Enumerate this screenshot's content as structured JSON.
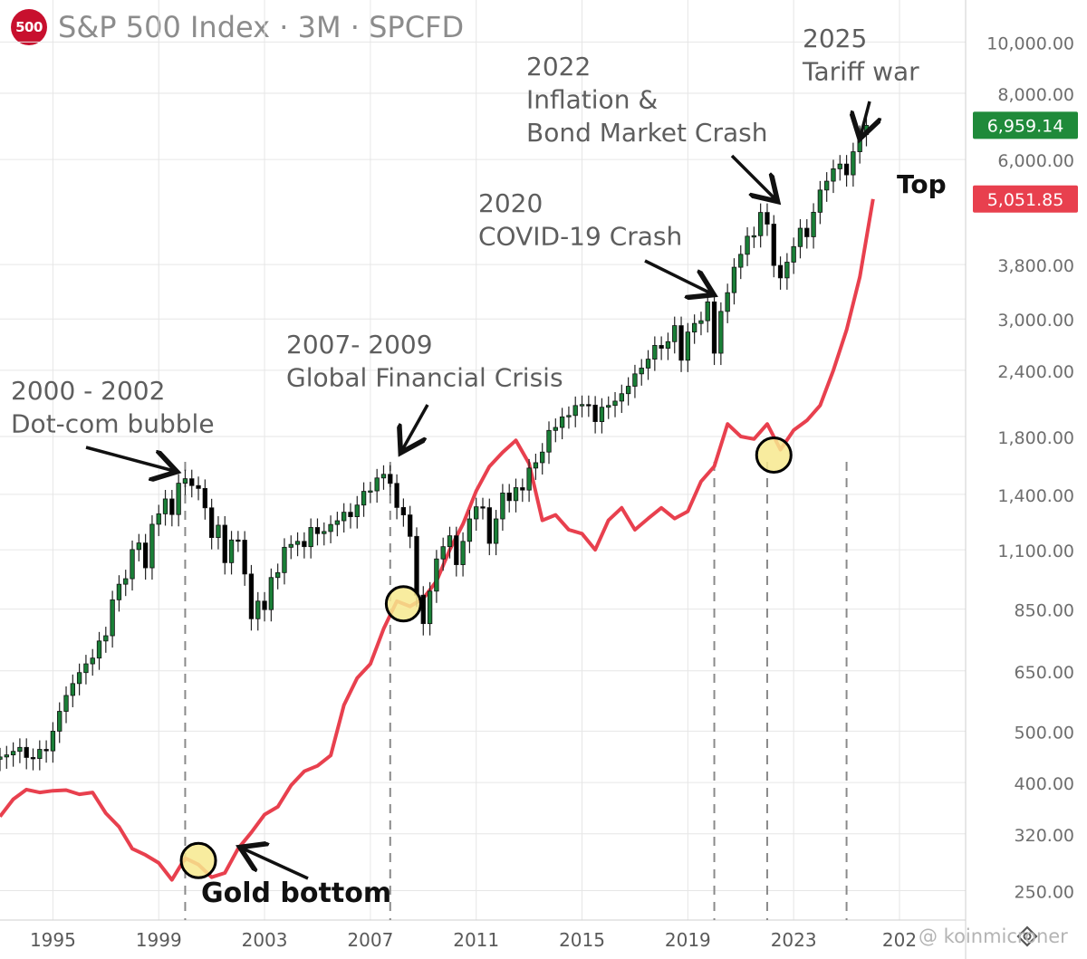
{
  "header": {
    "symbol_badge": "500",
    "title": "S&P 500 Index · 3M · SPCFD"
  },
  "watermark": "@ koinmicroner",
  "colors": {
    "up_candle": "#1a7f37",
    "down_candle": "#000000",
    "gold_line": "#e8404e",
    "price_tag_green": "#1f8a3a",
    "price_tag_red": "#e8404e",
    "highlight_circle": "#f7e98e",
    "grid": "#e6e6e6"
  },
  "chart_data": {
    "type": "line",
    "y_scale": "log",
    "ylim": [
      220,
      12000
    ],
    "xlim": [
      1993.0,
      2029.5
    ],
    "y_ticks": [
      "10,000.00",
      "8,000.00",
      "6,000.00",
      "3,800.00",
      "3,000.00",
      "2,400.00",
      "1,800.00",
      "1,400.00",
      "1,100.00",
      "850.00",
      "650.00",
      "500.00",
      "400.00",
      "320.00",
      "250.00"
    ],
    "x_ticks": [
      "1995",
      "1999",
      "2003",
      "2007",
      "2011",
      "2015",
      "2019",
      "2023",
      "202"
    ],
    "price_tags": [
      {
        "label": "6,959.14",
        "value": 6959.14,
        "color": "green"
      },
      {
        "label": "5,051.85",
        "value": 5051.85,
        "color": "red"
      }
    ],
    "series": [
      {
        "name": "S&P 500 Index",
        "kind": "quarterly-candles",
        "x": [
          1993.0,
          1993.25,
          1993.5,
          1993.75,
          1994.0,
          1994.25,
          1994.5,
          1994.75,
          1995.0,
          1995.25,
          1995.5,
          1995.75,
          1996.0,
          1996.25,
          1996.5,
          1996.75,
          1997.0,
          1997.25,
          1997.5,
          1997.75,
          1998.0,
          1998.25,
          1998.5,
          1998.75,
          1999.0,
          1999.25,
          1999.5,
          1999.75,
          2000.0,
          2000.25,
          2000.5,
          2000.75,
          2001.0,
          2001.25,
          2001.5,
          2001.75,
          2002.0,
          2002.25,
          2002.5,
          2002.75,
          2003.0,
          2003.25,
          2003.5,
          2003.75,
          2004.0,
          2004.25,
          2004.5,
          2004.75,
          2005.0,
          2005.25,
          2005.5,
          2005.75,
          2006.0,
          2006.25,
          2006.5,
          2006.75,
          2007.0,
          2007.25,
          2007.5,
          2007.75,
          2008.0,
          2008.25,
          2008.5,
          2008.75,
          2009.0,
          2009.25,
          2009.5,
          2009.75,
          2010.0,
          2010.25,
          2010.5,
          2010.75,
          2011.0,
          2011.25,
          2011.5,
          2011.75,
          2012.0,
          2012.25,
          2012.5,
          2012.75,
          2013.0,
          2013.25,
          2013.5,
          2013.75,
          2014.0,
          2014.25,
          2014.5,
          2014.75,
          2015.0,
          2015.25,
          2015.5,
          2015.75,
          2016.0,
          2016.25,
          2016.5,
          2016.75,
          2017.0,
          2017.25,
          2017.5,
          2017.75,
          2018.0,
          2018.25,
          2018.5,
          2018.75,
          2019.0,
          2019.25,
          2019.5,
          2019.75,
          2020.0,
          2020.25,
          2020.5,
          2020.75,
          2021.0,
          2021.25,
          2021.5,
          2021.75,
          2022.0,
          2022.25,
          2022.5,
          2022.75,
          2023.0,
          2023.25,
          2023.5,
          2023.75,
          2024.0,
          2024.25,
          2024.5,
          2024.75,
          2025.0,
          2025.25,
          2025.5,
          2025.75
        ],
        "values": [
          447,
          451,
          458,
          466,
          446,
          444,
          462,
          459,
          500,
          545,
          584,
          615,
          645,
          670,
          687,
          740,
          757,
          885,
          947,
          970,
          1101,
          1133,
          1017,
          1229,
          1286,
          1372,
          1282,
          1469,
          1498,
          1454,
          1436,
          1320,
          1160,
          1224,
          1040,
          1148,
          1147,
          990,
          815,
          880,
          848,
          975,
          996,
          1112,
          1126,
          1141,
          1115,
          1212,
          1180,
          1191,
          1228,
          1248,
          1295,
          1270,
          1336,
          1418,
          1421,
          1503,
          1527,
          1468,
          1322,
          1280,
          1166,
          903,
          798,
          919,
          1057,
          1115,
          1169,
          1031,
          1141,
          1258,
          1326,
          1321,
          1131,
          1258,
          1408,
          1362,
          1441,
          1426,
          1569,
          1606,
          1682,
          1848,
          1872,
          1960,
          1972,
          2059,
          2068,
          2063,
          1920,
          2044,
          2060,
          2099,
          2168,
          2239,
          2363,
          2423,
          2519,
          2674,
          2641,
          2718,
          2914,
          2507,
          2834,
          2942,
          2977,
          3231,
          2585,
          3100,
          3363,
          3756,
          3973,
          4298,
          4308,
          4766,
          4530,
          3785,
          3586,
          3840,
          4109,
          4450,
          4288,
          4770,
          5254,
          5460,
          5762,
          5882,
          5612,
          6205,
          6688,
          6959.14
        ]
      },
      {
        "name": "Gold",
        "kind": "line",
        "x": [
          1993.0,
          1993.5,
          1994.0,
          1994.5,
          1995.0,
          1995.5,
          1996.0,
          1996.5,
          1997.0,
          1997.5,
          1998.0,
          1998.5,
          1999.0,
          1999.5,
          2000.0,
          2000.5,
          2001.0,
          2001.5,
          2002.0,
          2002.5,
          2003.0,
          2003.5,
          2004.0,
          2004.5,
          2005.0,
          2005.5,
          2006.0,
          2006.5,
          2007.0,
          2007.5,
          2008.0,
          2008.5,
          2009.0,
          2009.5,
          2010.0,
          2010.5,
          2011.0,
          2011.5,
          2012.0,
          2012.5,
          2013.0,
          2013.5,
          2014.0,
          2014.5,
          2015.0,
          2015.5,
          2016.0,
          2016.5,
          2017.0,
          2017.5,
          2018.0,
          2018.5,
          2019.0,
          2019.5,
          2020.0,
          2020.5,
          2021.0,
          2021.5,
          2022.0,
          2022.5,
          2023.0,
          2023.5,
          2024.0,
          2024.5,
          2025.0,
          2025.5,
          2026.0
        ],
        "values": [
          345,
          372,
          388,
          383,
          386,
          387,
          380,
          383,
          350,
          330,
          300,
          292,
          282,
          262,
          288,
          280,
          265,
          270,
          300,
          322,
          348,
          360,
          395,
          420,
          430,
          450,
          560,
          630,
          670,
          780,
          880,
          860,
          890,
          960,
          1100,
          1230,
          1420,
          1580,
          1680,
          1770,
          1600,
          1250,
          1280,
          1200,
          1180,
          1100,
          1250,
          1320,
          1200,
          1260,
          1320,
          1260,
          1300,
          1480,
          1580,
          1900,
          1800,
          1780,
          1900,
          1700,
          1850,
          1930,
          2060,
          2400,
          2860,
          3600,
          5051.85
        ]
      }
    ],
    "vertical_markers": [
      2000.0,
      2007.75,
      2020.0,
      2022.0,
      2025.0
    ],
    "highlight_circles": [
      {
        "series": "Gold",
        "x": 2000.5,
        "y": 285
      },
      {
        "series": "Gold",
        "x": 2008.25,
        "y": 870
      },
      {
        "series": "Gold",
        "x": 2022.25,
        "y": 1660
      }
    ],
    "annotations": [
      {
        "lines": [
          "2000 - 2002",
          "Dot-com bubble"
        ],
        "target_x": 2000.25,
        "target_y": 1500
      },
      {
        "lines": [
          "2007- 2009",
          "Global Financial Crisis"
        ],
        "target_x": 2007.75,
        "target_y": 1570
      },
      {
        "lines": [
          "2020",
          "COVID-19 Crash"
        ],
        "target_x": 2019.75,
        "target_y": 3270
      },
      {
        "lines": [
          "2022",
          "Inflation &",
          "Bond Market Crash"
        ],
        "target_x": 2022.0,
        "target_y": 4800
      },
      {
        "lines": [
          "2025",
          "Tariff war"
        ],
        "target_x": 2025.0,
        "target_y": 6750
      },
      {
        "lines": [
          "Top"
        ],
        "target_x": null,
        "target_y": null
      },
      {
        "lines": [
          "Gold bottom"
        ],
        "target_x": 2002.0,
        "target_y": 265
      }
    ]
  }
}
